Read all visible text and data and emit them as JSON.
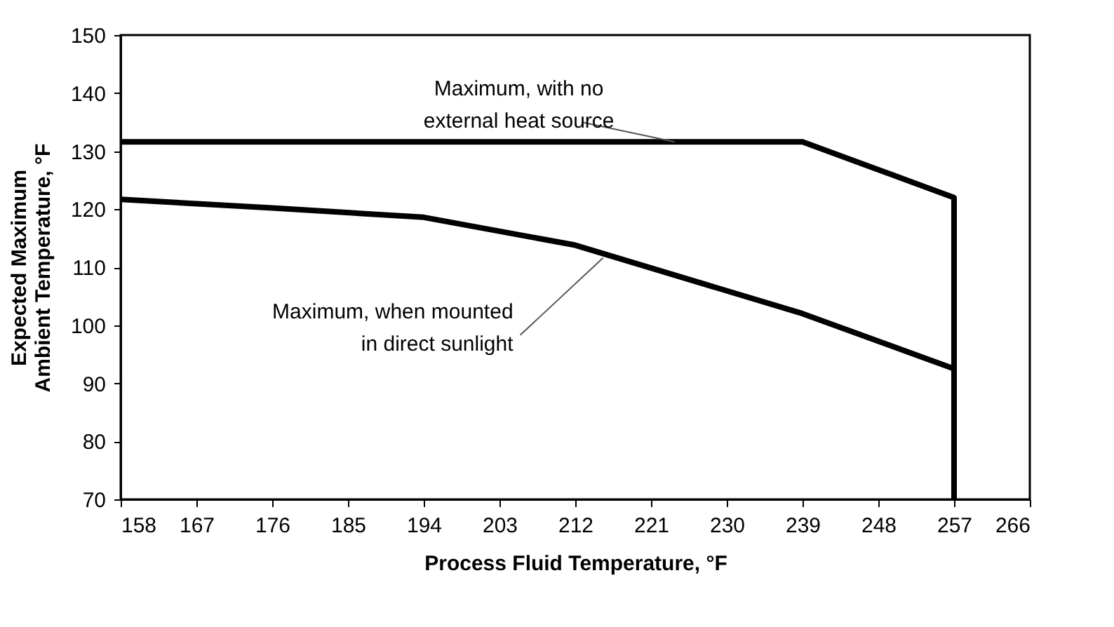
{
  "chart_data": {
    "type": "line",
    "xlabel": "Process Fluid Temperature, °F",
    "ylabel": "Expected Maximum\nAmbient Temperature, °F",
    "series": [
      {
        "color": "#000000",
        "x": [
          158,
          239,
          248,
          257,
          257
        ],
        "values": [
          131.6,
          131.6,
          126.8,
          122,
          70
        ]
      },
      {
        "color": "#000000",
        "x": [
          158,
          176,
          194,
          212,
          239,
          257,
          257
        ],
        "values": [
          121.7,
          120.2,
          118.6,
          113.8,
          102,
          92.5,
          70
        ]
      }
    ],
    "xlim": [
      158,
      266
    ],
    "xticks": [
      158,
      167,
      176,
      185,
      194,
      203,
      212,
      221,
      230,
      239,
      248,
      257,
      266
    ],
    "ylim": [
      70,
      150
    ],
    "yticks": [
      70,
      80,
      90,
      100,
      110,
      120,
      130,
      140,
      150
    ],
    "marker": "none",
    "line_style": "solid",
    "annotations": [
      {
        "text": "Maximum, with no\nexternal heat source",
        "x": 223.8,
        "y": 131.6
      },
      {
        "text": "Maximum, when mounted\nin direct sunlight",
        "x": 215.3,
        "y": 111.6
      }
    ]
  }
}
